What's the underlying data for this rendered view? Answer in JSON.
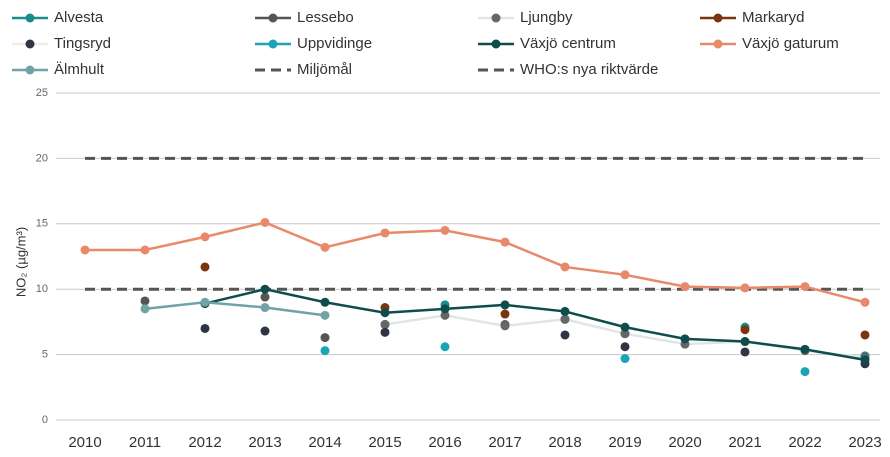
{
  "chart_data": {
    "type": "line",
    "y_label": "NO₂ (µg/m³)",
    "categories": [
      "2010",
      "2011",
      "2012",
      "2013",
      "2014",
      "2015",
      "2016",
      "2017",
      "2018",
      "2019",
      "2020",
      "2021",
      "2022",
      "2023"
    ],
    "ylim": [
      0,
      25
    ],
    "yticks": [
      0,
      5,
      10,
      15,
      20,
      25
    ],
    "grid": true,
    "series": [
      {
        "name": "Alvesta",
        "color": "#1a8c8c",
        "line": true,
        "values": [
          null,
          null,
          null,
          null,
          null,
          null,
          8.8,
          null,
          null,
          null,
          null,
          7.1,
          null,
          4.9
        ]
      },
      {
        "name": "Lessebo",
        "color": "#555555",
        "line": false,
        "values": [
          null,
          9.1,
          null,
          9.4,
          6.3,
          7.3,
          null,
          7.3,
          7.7,
          6.6,
          null,
          null,
          null,
          null
        ]
      },
      {
        "name": "Ljungby",
        "color": "#dfe6e6",
        "marker_color": "#666666",
        "line": true,
        "values": [
          null,
          null,
          null,
          null,
          null,
          7.3,
          8.0,
          7.2,
          7.7,
          6.6,
          5.8,
          6.0,
          5.3,
          4.8
        ]
      },
      {
        "name": "Markaryd",
        "color": "#7a3510",
        "line": false,
        "values": [
          null,
          null,
          11.7,
          null,
          null,
          8.6,
          null,
          8.1,
          null,
          null,
          null,
          6.9,
          null,
          6.5
        ]
      },
      {
        "name": "Tingsryd",
        "color": "#f3ede0",
        "marker_color": "#2f3545",
        "line": false,
        "values": [
          null,
          null,
          7.0,
          6.8,
          null,
          6.7,
          null,
          null,
          6.5,
          5.6,
          null,
          5.2,
          null,
          4.3
        ]
      },
      {
        "name": "Uppvidinge",
        "color": "#1ba4b8",
        "line": false,
        "values": [
          null,
          null,
          null,
          null,
          5.3,
          null,
          5.6,
          null,
          null,
          4.7,
          null,
          null,
          3.7,
          null
        ]
      },
      {
        "name": "Växjö centrum",
        "color": "#0e4d4b",
        "line": true,
        "values": [
          null,
          null,
          8.9,
          10.0,
          9.0,
          8.2,
          8.5,
          8.8,
          8.3,
          7.1,
          6.2,
          6.0,
          5.4,
          4.6
        ]
      },
      {
        "name": "Växjö gaturum",
        "color": "#e8896a",
        "line": true,
        "values": [
          13.0,
          13.0,
          14.0,
          15.1,
          13.2,
          14.3,
          14.5,
          13.6,
          11.7,
          11.1,
          10.2,
          10.1,
          10.2,
          9.0
        ]
      },
      {
        "name": "Älmhult",
        "color": "#6fa3a6",
        "line": true,
        "values": [
          null,
          8.5,
          9.0,
          8.6,
          8.0,
          null,
          null,
          null,
          null,
          null,
          null,
          null,
          null,
          null
        ]
      },
      {
        "name": "Miljömål",
        "color": "#555555",
        "line": true,
        "dash": true,
        "values": [
          10,
          10,
          10,
          10,
          10,
          10,
          10,
          10,
          10,
          10,
          10,
          10,
          10,
          10
        ]
      },
      {
        "name": "WHO:s nya riktvärde",
        "color": "#555555",
        "line": true,
        "dash": true,
        "values": [
          20,
          20,
          20,
          20,
          20,
          20,
          20,
          20,
          20,
          20,
          20,
          20,
          20,
          20
        ]
      }
    ]
  }
}
